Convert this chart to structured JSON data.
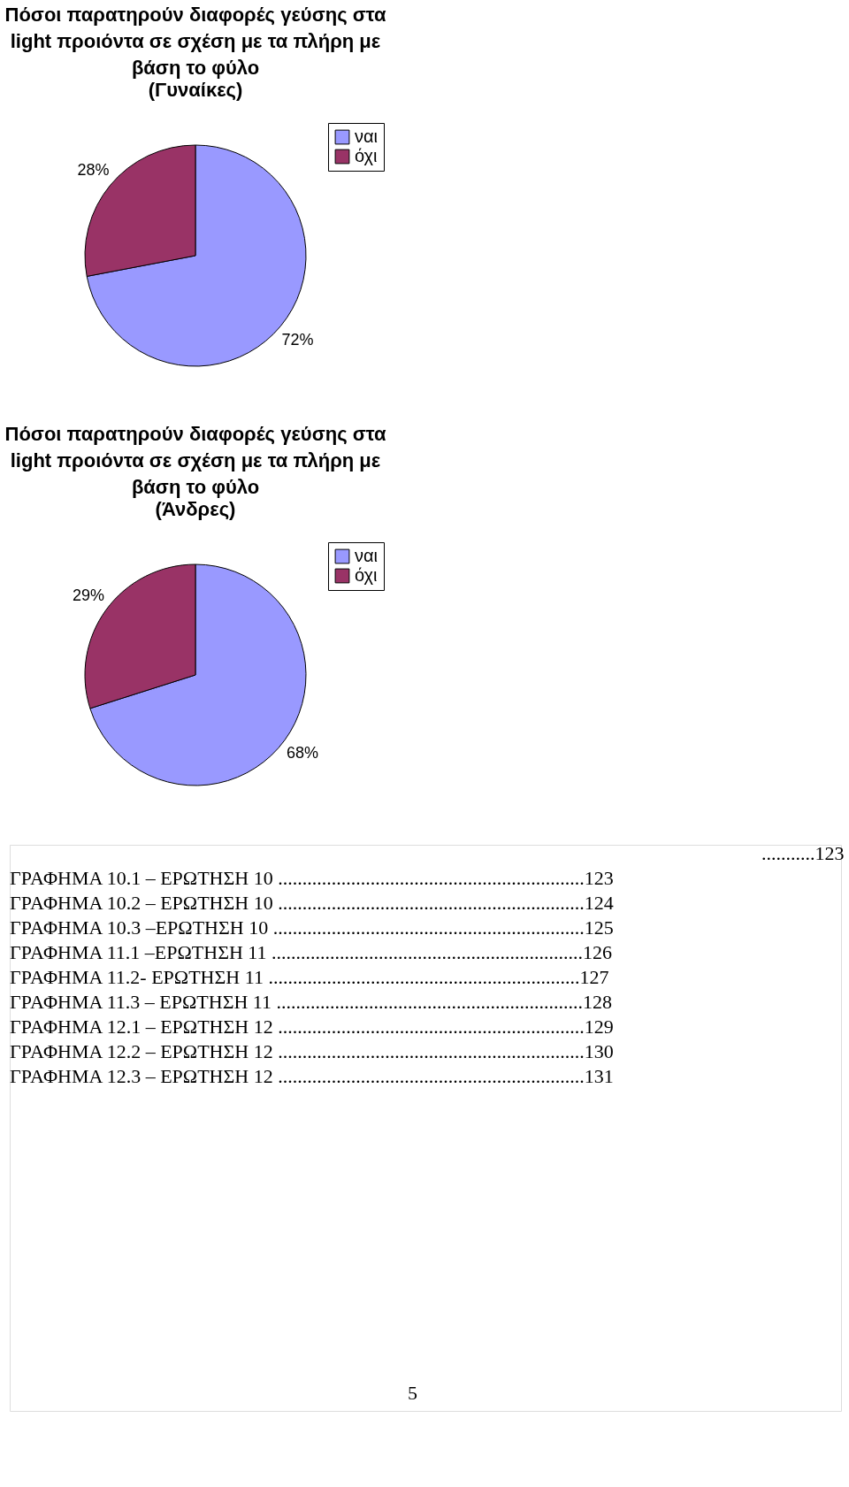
{
  "chart_data": [
    {
      "type": "pie",
      "title": "Πόσοι παρατηρούν διαφορές γεύσης στα light προιόντα σε σχέση με τα πλήρη με βάση το φύλο",
      "subtitle": "(Γυναίκες)",
      "categories": [
        "ναι",
        "όχι"
      ],
      "values": [
        72,
        28
      ],
      "colors": [
        "#9999ff",
        "#993366"
      ],
      "value_labels": [
        "72%",
        "28%"
      ],
      "legend": "right"
    },
    {
      "type": "pie",
      "title": "Πόσοι παρατηρούν διαφορές γεύσης στα light προιόντα σε σχέση με τα πλήρη με βάση το φύλο",
      "subtitle": "(Άνδρες)",
      "categories": [
        "ναι",
        "όχι"
      ],
      "values": [
        68,
        29
      ],
      "colors": [
        "#9999ff",
        "#993366"
      ],
      "value_labels": [
        "68%",
        "29%"
      ],
      "legend": "right",
      "annotations": [
        "...........123",
        "ΓΡΑΦΗΜΑ 10.1 – ΕΡΩΤΗΣΗ 10 ...............................................................123",
        "ΓΡΑΦΗΜΑ 10.2 – ΕΡΩΤΗΣΗ 10 ...............................................................124",
        "ΓΡΑΦΗΜΑ 10.3 –ΕΡΩΤΗΣΗ 10 ................................................................125",
        "ΓΡΑΦΗΜΑ 11.1 –ΕΡΩΤΗΣΗ 11 ................................................................126",
        "ΓΡΑΦΗΜΑ 11.2- ΕΡΩΤΗΣΗ 11 ................................................................127",
        "ΓΡΑΦΗΜΑ 11.3 – ΕΡΩΤΗΣΗ 11 ...............................................................128",
        "ΓΡΑΦΗΜΑ 12.1 – ΕΡΩΤΗΣΗ 12 ...............................................................129",
        "ΓΡΑΦΗΜΑ 12.2 – ΕΡΩΤΗΣΗ 12 ...............................................................130",
        "ΓΡΑΦΗΜΑ 12.3 – ΕΡΩΤΗΣΗ 12 ...............................................................131",
        "5"
      ]
    }
  ]
}
